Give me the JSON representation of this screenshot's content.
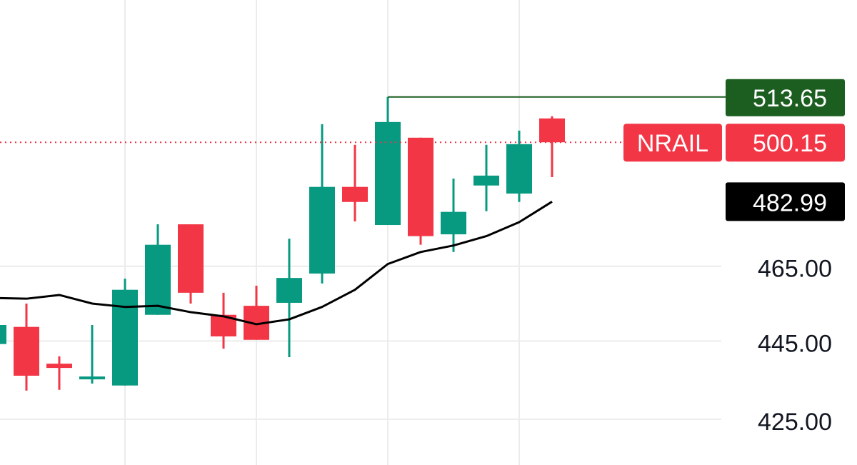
{
  "chart_data": {
    "type": "candlestick",
    "symbol": "NRAIL",
    "log_scale": true,
    "grid": true,
    "ylim": [
      413.7,
      543.8
    ],
    "yticks": [
      {
        "value": 425,
        "label": "425.00"
      },
      {
        "value": 445,
        "label": "445.00"
      },
      {
        "value": 465,
        "label": "465.00"
      }
    ],
    "categories": [
      null,
      null,
      null,
      null,
      null,
      null,
      null,
      null,
      null,
      null,
      null,
      null,
      null,
      null,
      null,
      null,
      null,
      null
    ],
    "open": [
      444.2,
      448.7,
      439.1,
      435.1,
      433.5,
      451.9,
      476.6,
      451.9,
      454.3,
      455.1,
      463.0,
      487.2,
      476.4,
      501.5,
      473.8,
      487.6,
      485.3,
      507.22
    ],
    "high": [
      449.8,
      454.9,
      441.0,
      449.2,
      461.6,
      476.6,
      476.6,
      457.8,
      459.7,
      472.6,
      505.5,
      499.4,
      513.65,
      501.5,
      489.6,
      499.4,
      503.6,
      507.86
    ],
    "low": [
      444.2,
      432.2,
      432.4,
      434.0,
      433.5,
      451.9,
      454.9,
      443.0,
      445.3,
      440.8,
      460.3,
      477.4,
      476.4,
      470.9,
      468.9,
      480.3,
      482.9,
      490.0
    ],
    "close": [
      449.2,
      436.0,
      438.0,
      435.8,
      458.6,
      470.9,
      457.8,
      446.2,
      445.3,
      461.8,
      487.2,
      482.9,
      506.15,
      473.3,
      480.1,
      490.45,
      499.6,
      500.15
    ],
    "up_color": "#089981",
    "down_color": "#f23645",
    "ma": {
      "color": "#000000",
      "values": [
        456.4,
        456.2,
        457.2,
        454.9,
        454.0,
        454.3,
        452.6,
        451.5,
        449.4,
        450.7,
        454.0,
        458.6,
        465.6,
        468.9,
        470.7,
        473.3,
        477.2,
        482.99
      ]
    },
    "high_price": 513.65,
    "high_color": "#1b5e20",
    "last_price": 500.15,
    "last_color": "#f23645",
    "ma_last": 482.99,
    "ma_label_color": "#000000"
  }
}
